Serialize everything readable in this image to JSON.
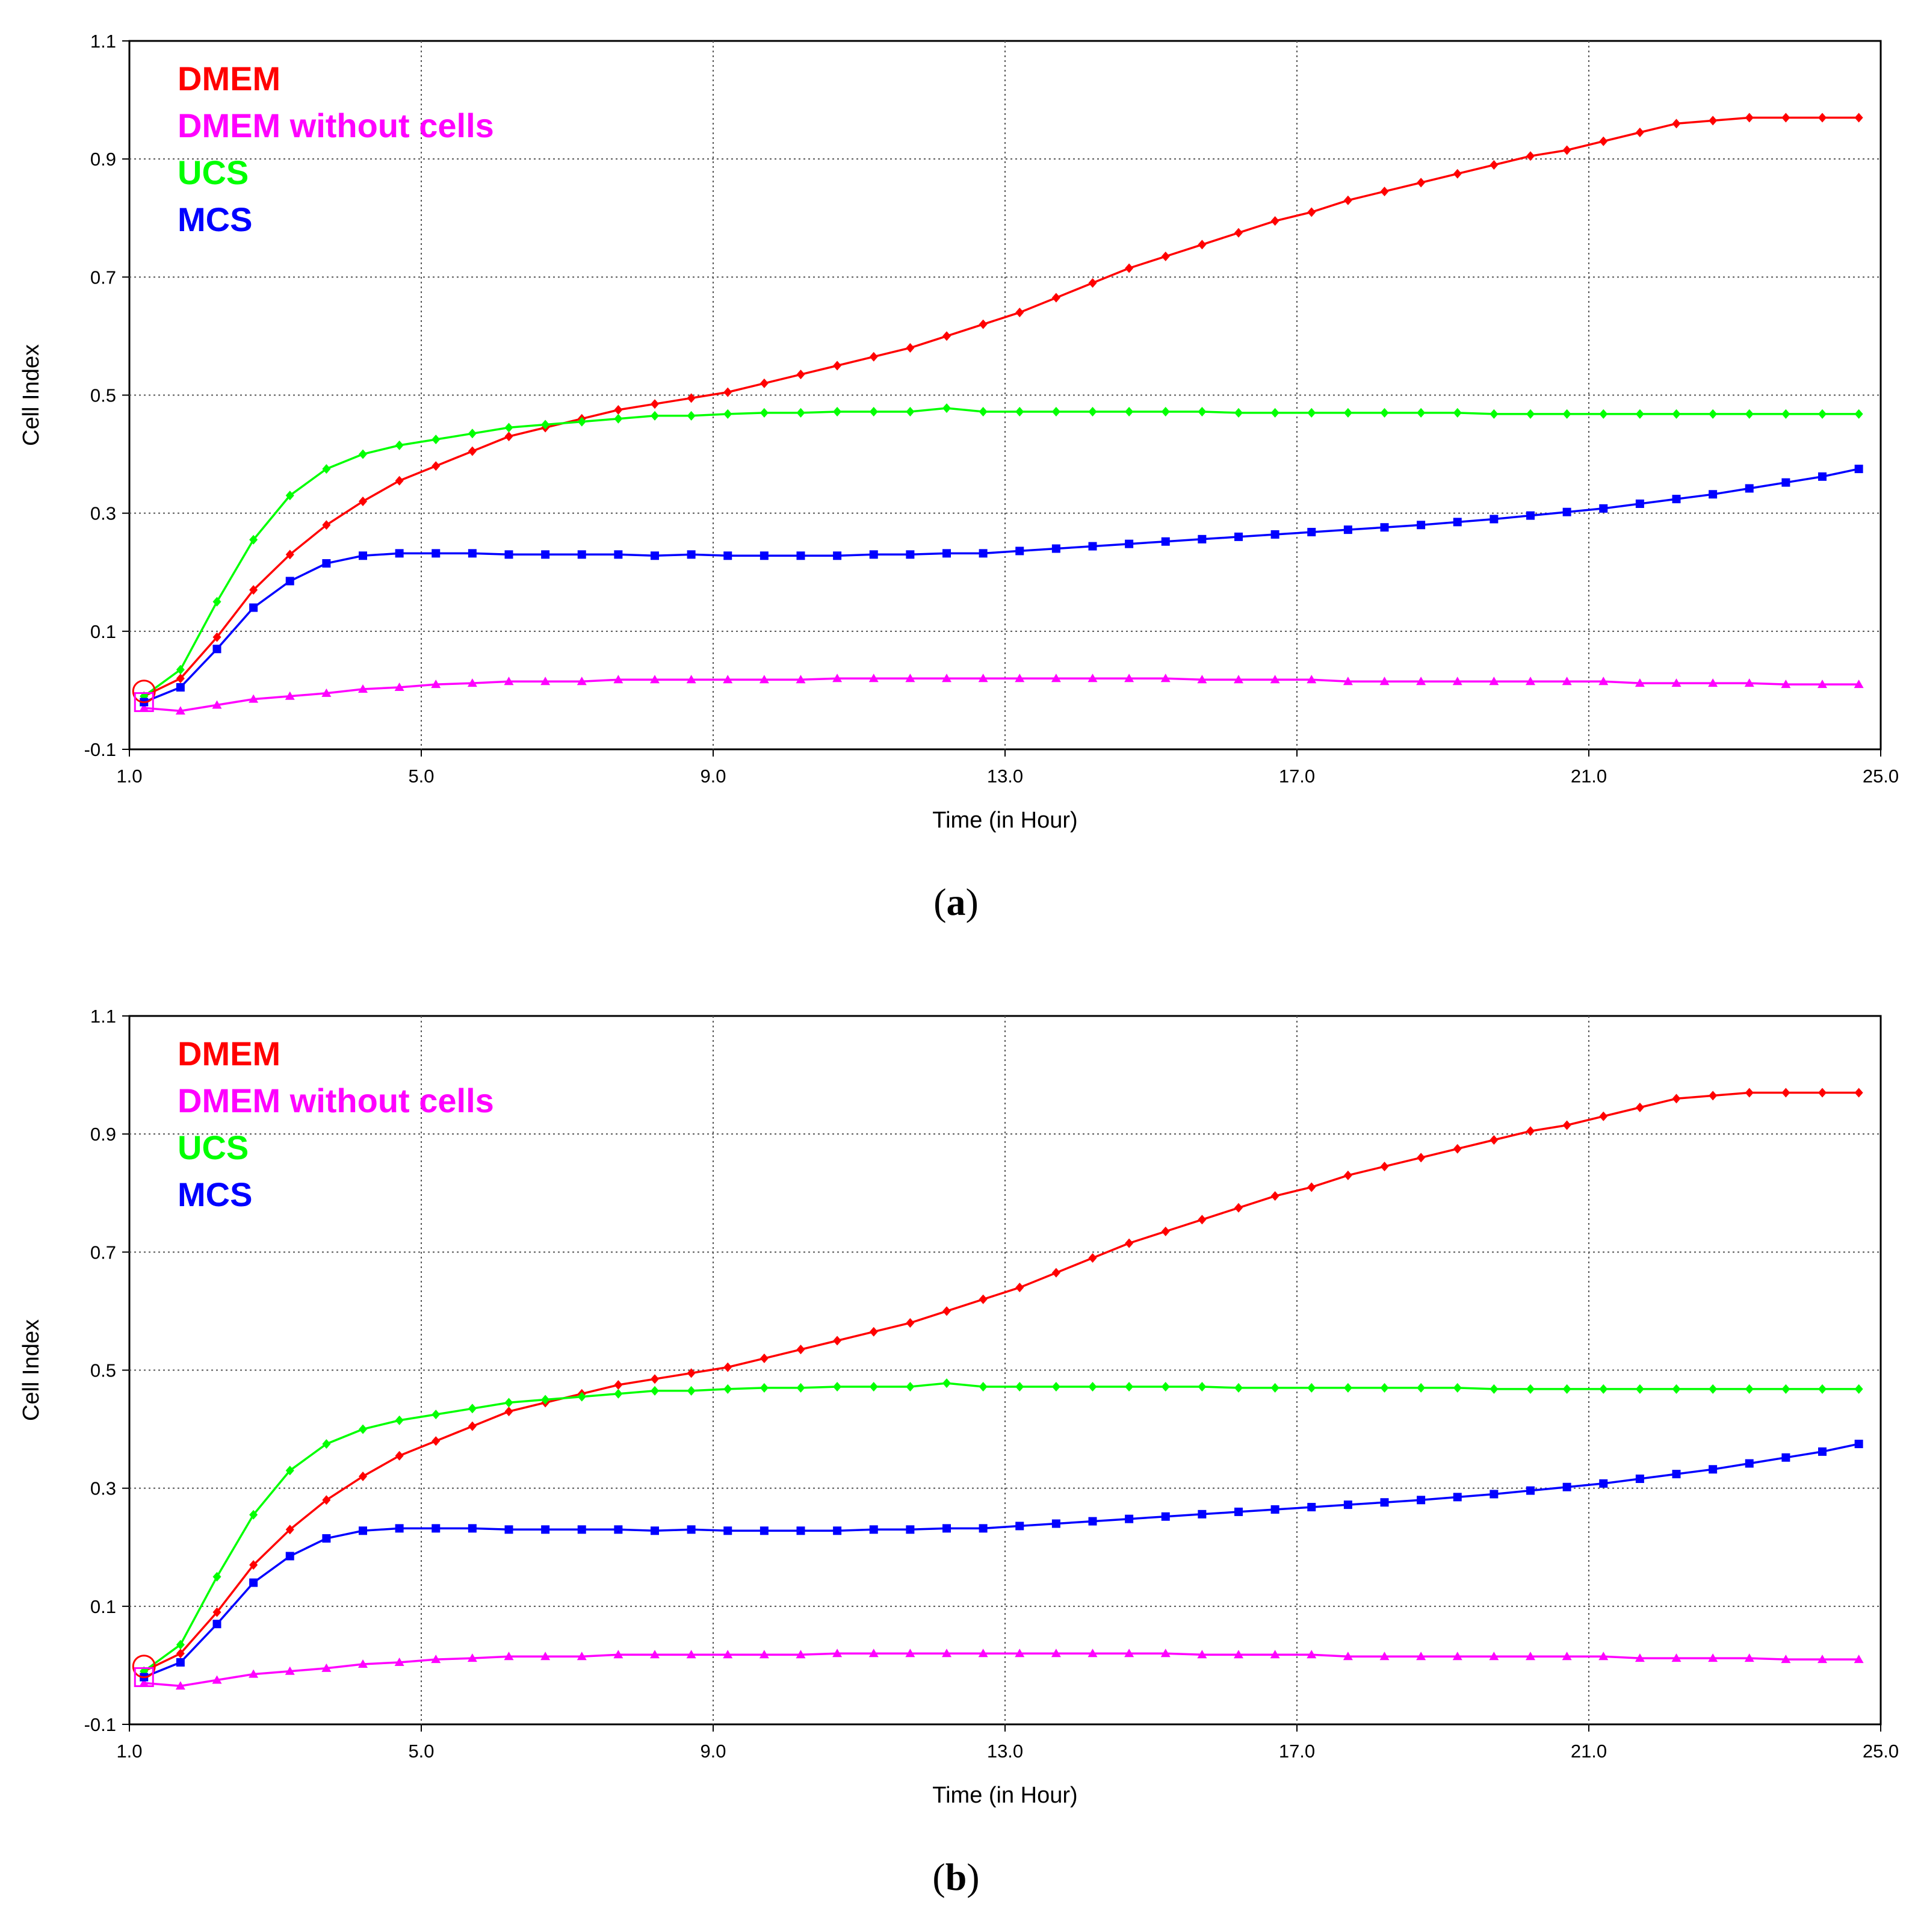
{
  "chart_data": [
    {
      "panel": "a",
      "caption_letter": "a",
      "type": "line",
      "title": "",
      "xlabel": "Time (in Hour)",
      "ylabel": "Cell Index",
      "xlim": [
        1.0,
        25.0
      ],
      "ylim": [
        -0.1,
        1.1
      ],
      "xticks": [
        "1.0",
        "5.0",
        "9.0",
        "13.0",
        "17.0",
        "21.0",
        "25.0"
      ],
      "yticks": [
        "-0.1",
        "0.1",
        "0.3",
        "0.5",
        "0.7",
        "0.9",
        "1.1"
      ],
      "grid": true,
      "legend_position": "top-left",
      "series": [
        {
          "name": "DMEM",
          "color": "#ff0000",
          "marker": "diamond",
          "x": [
            1.2,
            1.7,
            2.2,
            2.7,
            3.2,
            3.7,
            4.2,
            4.7,
            5.2,
            5.7,
            6.2,
            6.7,
            7.2,
            7.7,
            8.2,
            8.7,
            9.2,
            9.7,
            10.2,
            10.7,
            11.2,
            11.7,
            12.2,
            12.7,
            13.2,
            13.7,
            14.2,
            14.7,
            15.2,
            15.7,
            16.2,
            16.7,
            17.2,
            17.7,
            18.2,
            18.7,
            19.2,
            19.7,
            20.2,
            20.7,
            21.2,
            21.7,
            22.2,
            22.7,
            23.2,
            23.7,
            24.2,
            24.7
          ],
          "y": [
            -0.01,
            0.02,
            0.09,
            0.17,
            0.23,
            0.28,
            0.32,
            0.355,
            0.38,
            0.405,
            0.43,
            0.445,
            0.46,
            0.475,
            0.485,
            0.495,
            0.505,
            0.52,
            0.535,
            0.55,
            0.565,
            0.58,
            0.6,
            0.62,
            0.64,
            0.665,
            0.69,
            0.715,
            0.735,
            0.755,
            0.775,
            0.795,
            0.81,
            0.83,
            0.845,
            0.86,
            0.875,
            0.89,
            0.905,
            0.915,
            0.93,
            0.945,
            0.96,
            0.965,
            0.97,
            0.97,
            0.97,
            0.97
          ]
        },
        {
          "name": "DMEM without cells",
          "color": "#ff00ff",
          "marker": "triangle",
          "x": [
            1.2,
            1.7,
            2.2,
            2.7,
            3.2,
            3.7,
            4.2,
            4.7,
            5.2,
            5.7,
            6.2,
            6.7,
            7.2,
            7.7,
            8.2,
            8.7,
            9.2,
            9.7,
            10.2,
            10.7,
            11.2,
            11.7,
            12.2,
            12.7,
            13.2,
            13.7,
            14.2,
            14.7,
            15.2,
            15.7,
            16.2,
            16.7,
            17.2,
            17.7,
            18.2,
            18.7,
            19.2,
            19.7,
            20.2,
            20.7,
            21.2,
            21.7,
            22.2,
            22.7,
            23.2,
            23.7,
            24.2,
            24.7
          ],
          "y": [
            -0.03,
            -0.035,
            -0.025,
            -0.015,
            -0.01,
            -0.005,
            0.002,
            0.005,
            0.01,
            0.012,
            0.015,
            0.015,
            0.015,
            0.018,
            0.018,
            0.018,
            0.018,
            0.018,
            0.018,
            0.02,
            0.02,
            0.02,
            0.02,
            0.02,
            0.02,
            0.02,
            0.02,
            0.02,
            0.02,
            0.018,
            0.018,
            0.018,
            0.018,
            0.015,
            0.015,
            0.015,
            0.015,
            0.015,
            0.015,
            0.015,
            0.015,
            0.012,
            0.012,
            0.012,
            0.012,
            0.01,
            0.01,
            0.01
          ]
        },
        {
          "name": "UCS",
          "color": "#00ff00",
          "marker": "diamond",
          "x": [
            1.2,
            1.7,
            2.2,
            2.7,
            3.2,
            3.7,
            4.2,
            4.7,
            5.2,
            5.7,
            6.2,
            6.7,
            7.2,
            7.7,
            8.2,
            8.7,
            9.2,
            9.7,
            10.2,
            10.7,
            11.2,
            11.7,
            12.2,
            12.7,
            13.2,
            13.7,
            14.2,
            14.7,
            15.2,
            15.7,
            16.2,
            16.7,
            17.2,
            17.7,
            18.2,
            18.7,
            19.2,
            19.7,
            20.2,
            20.7,
            21.2,
            21.7,
            22.2,
            22.7,
            23.2,
            23.7,
            24.2,
            24.7
          ],
          "y": [
            -0.01,
            0.035,
            0.15,
            0.255,
            0.33,
            0.375,
            0.4,
            0.415,
            0.425,
            0.435,
            0.445,
            0.45,
            0.455,
            0.46,
            0.465,
            0.465,
            0.468,
            0.47,
            0.47,
            0.472,
            0.472,
            0.472,
            0.478,
            0.472,
            0.472,
            0.472,
            0.472,
            0.472,
            0.472,
            0.472,
            0.47,
            0.47,
            0.47,
            0.47,
            0.47,
            0.47,
            0.47,
            0.468,
            0.468,
            0.468,
            0.468,
            0.468,
            0.468,
            0.468,
            0.468,
            0.468,
            0.468,
            0.468
          ]
        },
        {
          "name": "MCS",
          "color": "#0000ff",
          "marker": "square",
          "x": [
            1.2,
            1.7,
            2.2,
            2.7,
            3.2,
            3.7,
            4.2,
            4.7,
            5.2,
            5.7,
            6.2,
            6.7,
            7.2,
            7.7,
            8.2,
            8.7,
            9.2,
            9.7,
            10.2,
            10.7,
            11.2,
            11.7,
            12.2,
            12.7,
            13.2,
            13.7,
            14.2,
            14.7,
            15.2,
            15.7,
            16.2,
            16.7,
            17.2,
            17.7,
            18.2,
            18.7,
            19.2,
            19.7,
            20.2,
            20.7,
            21.2,
            21.7,
            22.2,
            22.7,
            23.2,
            23.7,
            24.2,
            24.7
          ],
          "y": [
            -0.02,
            0.005,
            0.07,
            0.14,
            0.185,
            0.215,
            0.228,
            0.232,
            0.232,
            0.232,
            0.23,
            0.23,
            0.23,
            0.23,
            0.228,
            0.23,
            0.228,
            0.228,
            0.228,
            0.228,
            0.23,
            0.23,
            0.232,
            0.232,
            0.236,
            0.24,
            0.244,
            0.248,
            0.252,
            0.256,
            0.26,
            0.264,
            0.268,
            0.272,
            0.276,
            0.28,
            0.285,
            0.29,
            0.296,
            0.302,
            0.308,
            0.316,
            0.324,
            0.332,
            0.342,
            0.352,
            0.362,
            0.375
          ]
        }
      ]
    },
    {
      "panel": "b",
      "caption_letter": "b",
      "type": "line",
      "title": "",
      "xlabel": "Time (in Hour)",
      "ylabel": "Cell Index",
      "xlim": [
        1.0,
        25.0
      ],
      "ylim": [
        -0.1,
        1.1
      ],
      "xticks": [
        "1.0",
        "5.0",
        "9.0",
        "13.0",
        "17.0",
        "21.0",
        "25.0"
      ],
      "yticks": [
        "-0.1",
        "0.1",
        "0.3",
        "0.5",
        "0.7",
        "0.9",
        "1.1"
      ],
      "grid": true,
      "legend_position": "top-left",
      "series": [
        {
          "name": "DMEM",
          "color": "#ff0000",
          "marker": "diamond",
          "x": [
            1.2,
            1.7,
            2.2,
            2.7,
            3.2,
            3.7,
            4.2,
            4.7,
            5.2,
            5.7,
            6.2,
            6.7,
            7.2,
            7.7,
            8.2,
            8.7,
            9.2,
            9.7,
            10.2,
            10.7,
            11.2,
            11.7,
            12.2,
            12.7,
            13.2,
            13.7,
            14.2,
            14.7,
            15.2,
            15.7,
            16.2,
            16.7,
            17.2,
            17.7,
            18.2,
            18.7,
            19.2,
            19.7,
            20.2,
            20.7,
            21.2,
            21.7,
            22.2,
            22.7,
            23.2,
            23.7,
            24.2,
            24.7
          ],
          "y": [
            -0.01,
            0.02,
            0.09,
            0.17,
            0.23,
            0.28,
            0.32,
            0.355,
            0.38,
            0.405,
            0.43,
            0.445,
            0.46,
            0.475,
            0.485,
            0.495,
            0.505,
            0.52,
            0.535,
            0.55,
            0.565,
            0.58,
            0.6,
            0.62,
            0.64,
            0.665,
            0.69,
            0.715,
            0.735,
            0.755,
            0.775,
            0.795,
            0.81,
            0.83,
            0.845,
            0.86,
            0.875,
            0.89,
            0.905,
            0.915,
            0.93,
            0.945,
            0.96,
            0.965,
            0.97,
            0.97,
            0.97,
            0.97
          ]
        },
        {
          "name": "DMEM without cells",
          "color": "#ff00ff",
          "marker": "triangle",
          "x": [
            1.2,
            1.7,
            2.2,
            2.7,
            3.2,
            3.7,
            4.2,
            4.7,
            5.2,
            5.7,
            6.2,
            6.7,
            7.2,
            7.7,
            8.2,
            8.7,
            9.2,
            9.7,
            10.2,
            10.7,
            11.2,
            11.7,
            12.2,
            12.7,
            13.2,
            13.7,
            14.2,
            14.7,
            15.2,
            15.7,
            16.2,
            16.7,
            17.2,
            17.7,
            18.2,
            18.7,
            19.2,
            19.7,
            20.2,
            20.7,
            21.2,
            21.7,
            22.2,
            22.7,
            23.2,
            23.7,
            24.2,
            24.7
          ],
          "y": [
            -0.03,
            -0.035,
            -0.025,
            -0.015,
            -0.01,
            -0.005,
            0.002,
            0.005,
            0.01,
            0.012,
            0.015,
            0.015,
            0.015,
            0.018,
            0.018,
            0.018,
            0.018,
            0.018,
            0.018,
            0.02,
            0.02,
            0.02,
            0.02,
            0.02,
            0.02,
            0.02,
            0.02,
            0.02,
            0.02,
            0.018,
            0.018,
            0.018,
            0.018,
            0.015,
            0.015,
            0.015,
            0.015,
            0.015,
            0.015,
            0.015,
            0.015,
            0.012,
            0.012,
            0.012,
            0.012,
            0.01,
            0.01,
            0.01
          ]
        },
        {
          "name": "UCS",
          "color": "#00ff00",
          "marker": "diamond",
          "x": [
            1.2,
            1.7,
            2.2,
            2.7,
            3.2,
            3.7,
            4.2,
            4.7,
            5.2,
            5.7,
            6.2,
            6.7,
            7.2,
            7.7,
            8.2,
            8.7,
            9.2,
            9.7,
            10.2,
            10.7,
            11.2,
            11.7,
            12.2,
            12.7,
            13.2,
            13.7,
            14.2,
            14.7,
            15.2,
            15.7,
            16.2,
            16.7,
            17.2,
            17.7,
            18.2,
            18.7,
            19.2,
            19.7,
            20.2,
            20.7,
            21.2,
            21.7,
            22.2,
            22.7,
            23.2,
            23.7,
            24.2,
            24.7
          ],
          "y": [
            -0.01,
            0.035,
            0.15,
            0.255,
            0.33,
            0.375,
            0.4,
            0.415,
            0.425,
            0.435,
            0.445,
            0.45,
            0.455,
            0.46,
            0.465,
            0.465,
            0.468,
            0.47,
            0.47,
            0.472,
            0.472,
            0.472,
            0.478,
            0.472,
            0.472,
            0.472,
            0.472,
            0.472,
            0.472,
            0.472,
            0.47,
            0.47,
            0.47,
            0.47,
            0.47,
            0.47,
            0.47,
            0.468,
            0.468,
            0.468,
            0.468,
            0.468,
            0.468,
            0.468,
            0.468,
            0.468,
            0.468,
            0.468
          ]
        },
        {
          "name": "MCS",
          "color": "#0000ff",
          "marker": "square",
          "x": [
            1.2,
            1.7,
            2.2,
            2.7,
            3.2,
            3.7,
            4.2,
            4.7,
            5.2,
            5.7,
            6.2,
            6.7,
            7.2,
            7.7,
            8.2,
            8.7,
            9.2,
            9.7,
            10.2,
            10.7,
            11.2,
            11.7,
            12.2,
            12.7,
            13.2,
            13.7,
            14.2,
            14.7,
            15.2,
            15.7,
            16.2,
            16.7,
            17.2,
            17.7,
            18.2,
            18.7,
            19.2,
            19.7,
            20.2,
            20.7,
            21.2,
            21.7,
            22.2,
            22.7,
            23.2,
            23.7,
            24.2,
            24.7
          ],
          "y": [
            -0.02,
            0.005,
            0.07,
            0.14,
            0.185,
            0.215,
            0.228,
            0.232,
            0.232,
            0.232,
            0.23,
            0.23,
            0.23,
            0.23,
            0.228,
            0.23,
            0.228,
            0.228,
            0.228,
            0.228,
            0.23,
            0.23,
            0.232,
            0.232,
            0.236,
            0.24,
            0.244,
            0.248,
            0.252,
            0.256,
            0.26,
            0.264,
            0.268,
            0.272,
            0.276,
            0.28,
            0.285,
            0.29,
            0.296,
            0.302,
            0.308,
            0.316,
            0.324,
            0.332,
            0.342,
            0.352,
            0.362,
            0.375
          ]
        }
      ]
    }
  ]
}
